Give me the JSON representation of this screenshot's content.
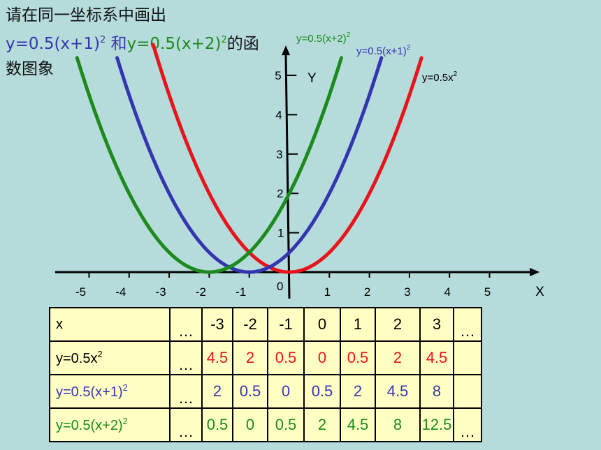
{
  "title": {
    "line1": "请在同一坐标系中画出",
    "eq1_prefix": "y=0.5(x+1)",
    "eq1_exp": "2",
    "connector": " 和",
    "eq2_prefix": "y=0.5(x+2)",
    "eq2_exp": "2",
    "tail": "的函",
    "line3": "数图象"
  },
  "chart_data": {
    "type": "line",
    "xlabel": "X",
    "ylabel": "Y",
    "origin_label": "0",
    "xlim": [
      -5.5,
      5.9
    ],
    "ylim": [
      0,
      5.3
    ],
    "x_ticks": [
      "-5",
      "-4",
      "-3",
      "-2",
      "-1",
      "1",
      "2",
      "3",
      "4",
      "5"
    ],
    "y_ticks": [
      "1",
      "2",
      "3",
      "4",
      "5"
    ],
    "series": [
      {
        "name": "y=0.5x²",
        "label_text": "y=0.5x",
        "label_exp": "2",
        "color": "#e8141b",
        "shift": 0,
        "x_range": [
          -3.4,
          3.3
        ]
      },
      {
        "name": "y=0.5(x+1)²",
        "label_text": "y=0.5(x+1)",
        "label_exp": "2",
        "color": "#3535b0",
        "shift": 1,
        "x_range": [
          -4.3,
          2.3
        ]
      },
      {
        "name": "y=0.5(x+2)²",
        "label_text": "y=0.5(x+2)",
        "label_exp": "2",
        "color": "#1c8a1c",
        "shift": 2,
        "x_range": [
          -5.3,
          1.3
        ]
      }
    ]
  },
  "table": {
    "rows": [
      {
        "head": "x",
        "head_exp": "",
        "head_color": "#000000",
        "cells": [
          "…",
          "-3",
          "-2",
          "-1",
          "0",
          "1",
          "2",
          "3",
          "…"
        ],
        "color": "#000000"
      },
      {
        "head": "y=0.5x",
        "head_exp": "2",
        "head_color": "#000000",
        "cells": [
          "…",
          "4.5",
          "2",
          "0.5",
          "0",
          "0.5",
          "2",
          "4.5",
          ""
        ],
        "color": "#e8141b"
      },
      {
        "head": "y=0.5(x+1)",
        "head_exp": "2",
        "head_color": "#3535b0",
        "cells": [
          "…",
          "2",
          "0.5",
          "0",
          "0.5",
          "2",
          "4.5",
          "8",
          ""
        ],
        "color": "#3535b0"
      },
      {
        "head": "y=0.5(x+2)",
        "head_exp": "2",
        "head_color": "#1c8a1c",
        "cells": [
          "…",
          "0.5",
          "0",
          "0.5",
          "2",
          "4.5",
          "8",
          "12.5",
          "…"
        ],
        "color": "#1c8a1c"
      }
    ]
  }
}
